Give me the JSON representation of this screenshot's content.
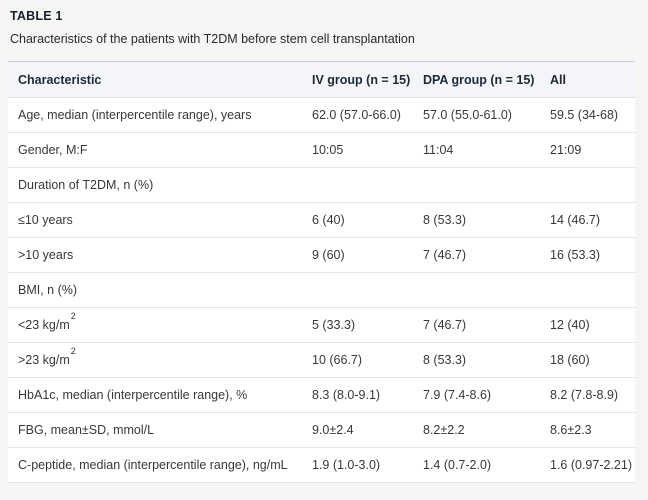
{
  "colors": {
    "page_background": "#f5f5f3",
    "header_row_background": "#f3f5f8",
    "header_top_border": "#c6ced8",
    "row_border": "#e2e5e9",
    "body_text": "#37383d",
    "heading_text": "#16212b"
  },
  "table_block": {
    "label": "TABLE 1",
    "caption": "Characteristics of the patients with T2DM before stem cell transplantation"
  },
  "table": {
    "columns": [
      "Characteristic",
      "IV group (n = 15)",
      "DPA group (n = 15)",
      "All"
    ],
    "rows": [
      {
        "characteristic": "Age, median (interpercentile range), years",
        "iv": "62.0 (57.0-66.0)",
        "dpa": "57.0 (55.0-61.0)",
        "all": "59.5 (34-68)"
      },
      {
        "characteristic": "Gender, M:F",
        "iv": "10:05",
        "dpa": "11:04",
        "all": "21:09"
      },
      {
        "characteristic": "Duration of T2DM, n (%)",
        "iv": "",
        "dpa": "",
        "all": ""
      },
      {
        "characteristic": "≤10 years",
        "iv": "6 (40)",
        "dpa": "8 (53.3)",
        "all": "14 (46.7)"
      },
      {
        "characteristic": ">10 years",
        "iv": "9 (60)",
        "dpa": "7 (46.7)",
        "all": "16 (53.3)"
      },
      {
        "characteristic": "BMI, n (%)",
        "iv": "",
        "dpa": "",
        "all": ""
      },
      {
        "characteristic": "<23 kg/m",
        "characteristic_sup": "2",
        "iv": "5 (33.3)",
        "dpa": "7 (46.7)",
        "all": "12 (40)"
      },
      {
        "characteristic": ">23 kg/m",
        "characteristic_sup": "2",
        "iv": "10 (66.7)",
        "dpa": "8 (53.3)",
        "all": "18 (60)"
      },
      {
        "characteristic": "HbA1c, median (interpercentile range), %",
        "iv": "8.3 (8.0-9.1)",
        "dpa": "7.9 (7.4-8.6)",
        "all": "8.2 (7.8-8.9)"
      },
      {
        "characteristic": "FBG, mean±SD, mmol/L",
        "iv": "9.0±2.4",
        "dpa": "8.2±2.2",
        "all": "8.6±2.3"
      },
      {
        "characteristic": "C-peptide, median (interpercentile range), ng/mL",
        "iv": "1.9 (1.0-3.0)",
        "dpa": "1.4 (0.7-2.0)",
        "all": "1.6 (0.97-2.21)"
      }
    ]
  }
}
